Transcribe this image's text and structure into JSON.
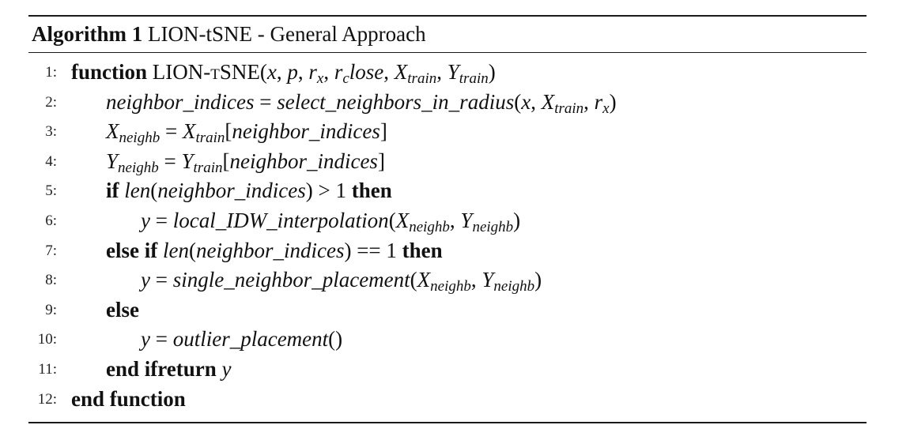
{
  "algorithm": {
    "label": "Algorithm 1",
    "title": "LION-tSNE - General Approach"
  },
  "lines": [
    {
      "num": "1:",
      "indent": 0,
      "parts": [
        {
          "t": "function",
          "s": "kw"
        },
        {
          "t": " LION-"
        },
        {
          "t": "tSNE",
          "s": "sc"
        },
        {
          "t": "("
        },
        {
          "t": "x",
          "s": "it"
        },
        {
          "t": ", "
        },
        {
          "t": "p",
          "s": "it"
        },
        {
          "t": ", "
        },
        {
          "t": "r",
          "s": "it"
        },
        {
          "t": "x",
          "s": "sub"
        },
        {
          "t": ", "
        },
        {
          "t": "r",
          "s": "it"
        },
        {
          "t": "c",
          "s": "sub"
        },
        {
          "t": "lose",
          "s": "it"
        },
        {
          "t": ", "
        },
        {
          "t": "X",
          "s": "it"
        },
        {
          "t": "train",
          "s": "sub"
        },
        {
          "t": ", "
        },
        {
          "t": "Y",
          "s": "it"
        },
        {
          "t": "train",
          "s": "sub"
        },
        {
          "t": ")"
        }
      ]
    },
    {
      "num": "2:",
      "indent": 1,
      "parts": [
        {
          "t": "neighbor_indices",
          "s": "it"
        },
        {
          "t": " = "
        },
        {
          "t": "select_neighbors_in_radius",
          "s": "it"
        },
        {
          "t": "("
        },
        {
          "t": "x",
          "s": "it"
        },
        {
          "t": ", "
        },
        {
          "t": "X",
          "s": "it"
        },
        {
          "t": "train",
          "s": "sub"
        },
        {
          "t": ", "
        },
        {
          "t": "r",
          "s": "it"
        },
        {
          "t": "x",
          "s": "sub"
        },
        {
          "t": ")"
        }
      ]
    },
    {
      "num": "3:",
      "indent": 1,
      "parts": [
        {
          "t": "X",
          "s": "it"
        },
        {
          "t": "neighb",
          "s": "sub"
        },
        {
          "t": " = "
        },
        {
          "t": "X",
          "s": "it"
        },
        {
          "t": "train",
          "s": "sub"
        },
        {
          "t": "["
        },
        {
          "t": "neighbor_indices",
          "s": "it"
        },
        {
          "t": "]"
        }
      ]
    },
    {
      "num": "4:",
      "indent": 1,
      "parts": [
        {
          "t": "Y",
          "s": "it"
        },
        {
          "t": "neighb",
          "s": "sub"
        },
        {
          "t": " = "
        },
        {
          "t": "Y",
          "s": "it"
        },
        {
          "t": "train",
          "s": "sub"
        },
        {
          "t": "["
        },
        {
          "t": "neighbor_indices",
          "s": "it"
        },
        {
          "t": "]"
        }
      ]
    },
    {
      "num": "5:",
      "indent": 1,
      "parts": [
        {
          "t": "if",
          "s": "kw"
        },
        {
          "t": " "
        },
        {
          "t": "len",
          "s": "it"
        },
        {
          "t": "("
        },
        {
          "t": "neighbor_indices",
          "s": "it"
        },
        {
          "t": ") > 1 "
        },
        {
          "t": "then",
          "s": "kw"
        }
      ]
    },
    {
      "num": "6:",
      "indent": 2,
      "parts": [
        {
          "t": "y",
          "s": "it"
        },
        {
          "t": " = "
        },
        {
          "t": "local_IDW_interpolation",
          "s": "it"
        },
        {
          "t": "("
        },
        {
          "t": "X",
          "s": "it"
        },
        {
          "t": "neighb",
          "s": "sub"
        },
        {
          "t": ", "
        },
        {
          "t": "Y",
          "s": "it"
        },
        {
          "t": "neighb",
          "s": "sub"
        },
        {
          "t": ")"
        }
      ]
    },
    {
      "num": "7:",
      "indent": 1,
      "parts": [
        {
          "t": "else if",
          "s": "kw"
        },
        {
          "t": " "
        },
        {
          "t": "len",
          "s": "it"
        },
        {
          "t": "("
        },
        {
          "t": "neighbor_indices",
          "s": "it"
        },
        {
          "t": ") == 1 "
        },
        {
          "t": "then",
          "s": "kw"
        }
      ]
    },
    {
      "num": "8:",
      "indent": 2,
      "parts": [
        {
          "t": "y",
          "s": "it"
        },
        {
          "t": " = "
        },
        {
          "t": "single_neighbor_placement",
          "s": "it"
        },
        {
          "t": "("
        },
        {
          "t": "X",
          "s": "it"
        },
        {
          "t": "neighb",
          "s": "sub"
        },
        {
          "t": ", "
        },
        {
          "t": "Y",
          "s": "it"
        },
        {
          "t": "neighb",
          "s": "sub"
        },
        {
          "t": ")"
        }
      ]
    },
    {
      "num": "9:",
      "indent": 1,
      "parts": [
        {
          "t": "else",
          "s": "kw"
        }
      ]
    },
    {
      "num": "10:",
      "indent": 2,
      "parts": [
        {
          "t": "y",
          "s": "it"
        },
        {
          "t": " = "
        },
        {
          "t": "outlier_placement",
          "s": "it"
        },
        {
          "t": "()"
        }
      ]
    },
    {
      "num": "11:",
      "indent": 1,
      "parts": [
        {
          "t": "end ifreturn",
          "s": "kw"
        },
        {
          "t": " "
        },
        {
          "t": "y",
          "s": "it"
        }
      ]
    },
    {
      "num": "12:",
      "indent": 0,
      "parts": [
        {
          "t": "end function",
          "s": "kw"
        }
      ]
    }
  ]
}
